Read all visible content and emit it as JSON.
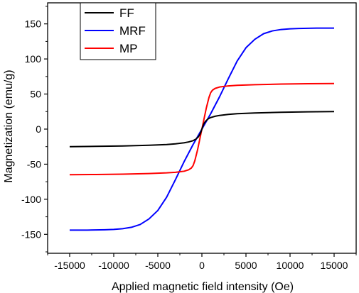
{
  "chart_data": {
    "type": "line",
    "title": "",
    "xlabel": "Applied magnetic field intensity (Oe)",
    "ylabel": "Magnetization (emu/g)",
    "xlim": [
      -17500,
      17500
    ],
    "ylim": [
      -177,
      180
    ],
    "xticks": [
      -15000,
      -10000,
      -5000,
      0,
      5000,
      10000,
      15000
    ],
    "yticks": [
      -150,
      -100,
      -50,
      0,
      50,
      100,
      150
    ],
    "xtick_labels": [
      "-15000",
      "-10000",
      "-5000",
      "0",
      "5000",
      "10000",
      "15000"
    ],
    "ytick_labels": [
      "-150",
      "-100",
      "-50",
      "0",
      "50",
      "100",
      "150"
    ],
    "grid": false,
    "legend_position": "top-left",
    "series": [
      {
        "name": "FF",
        "color": "#000000",
        "x": [
          -15000,
          -12000,
          -9000,
          -6000,
          -4000,
          -3000,
          -2000,
          -1500,
          -1000,
          -700,
          -400,
          -200,
          0,
          200,
          400,
          700,
          1000,
          1500,
          2000,
          3000,
          4000,
          6000,
          9000,
          12000,
          15000
        ],
        "values": [
          -25,
          -24.6,
          -24,
          -23,
          -22,
          -21,
          -19.5,
          -18.3,
          -16.5,
          -14.5,
          -11,
          -7,
          0,
          7,
          11,
          14.5,
          16.5,
          18.3,
          19.5,
          21,
          22,
          23,
          24,
          24.6,
          25
        ]
      },
      {
        "name": "MRF",
        "color": "#0000ff",
        "x": [
          -15000,
          -13000,
          -11000,
          -10000,
          -9000,
          -8000,
          -7000,
          -6000,
          -5000,
          -4000,
          -3000,
          -2000,
          -1000,
          0,
          1000,
          2000,
          3000,
          4000,
          5000,
          6000,
          7000,
          8000,
          9000,
          10000,
          11000,
          13000,
          15000
        ],
        "values": [
          -144,
          -144,
          -143.5,
          -143,
          -142,
          -140,
          -136,
          -128,
          -116,
          -97,
          -72,
          -46,
          -22,
          0,
          22,
          46,
          72,
          97,
          116,
          128,
          136,
          140,
          142,
          143,
          143.5,
          144,
          144
        ]
      },
      {
        "name": "MP",
        "color": "#ff0000",
        "x": [
          -15000,
          -12000,
          -9000,
          -6000,
          -4000,
          -3000,
          -2000,
          -1500,
          -1200,
          -1000,
          -800,
          -500,
          -250,
          0,
          250,
          500,
          800,
          1000,
          1200,
          1500,
          2000,
          3000,
          4000,
          6000,
          9000,
          12000,
          15000
        ],
        "values": [
          -65,
          -64.7,
          -64.2,
          -63.3,
          -62.4,
          -61.6,
          -60,
          -58,
          -55.5,
          -52,
          -45,
          -30,
          -15,
          0,
          15,
          30,
          45,
          52,
          55.5,
          58,
          60,
          61.6,
          62.4,
          63.3,
          64.2,
          64.7,
          65
        ]
      }
    ]
  }
}
